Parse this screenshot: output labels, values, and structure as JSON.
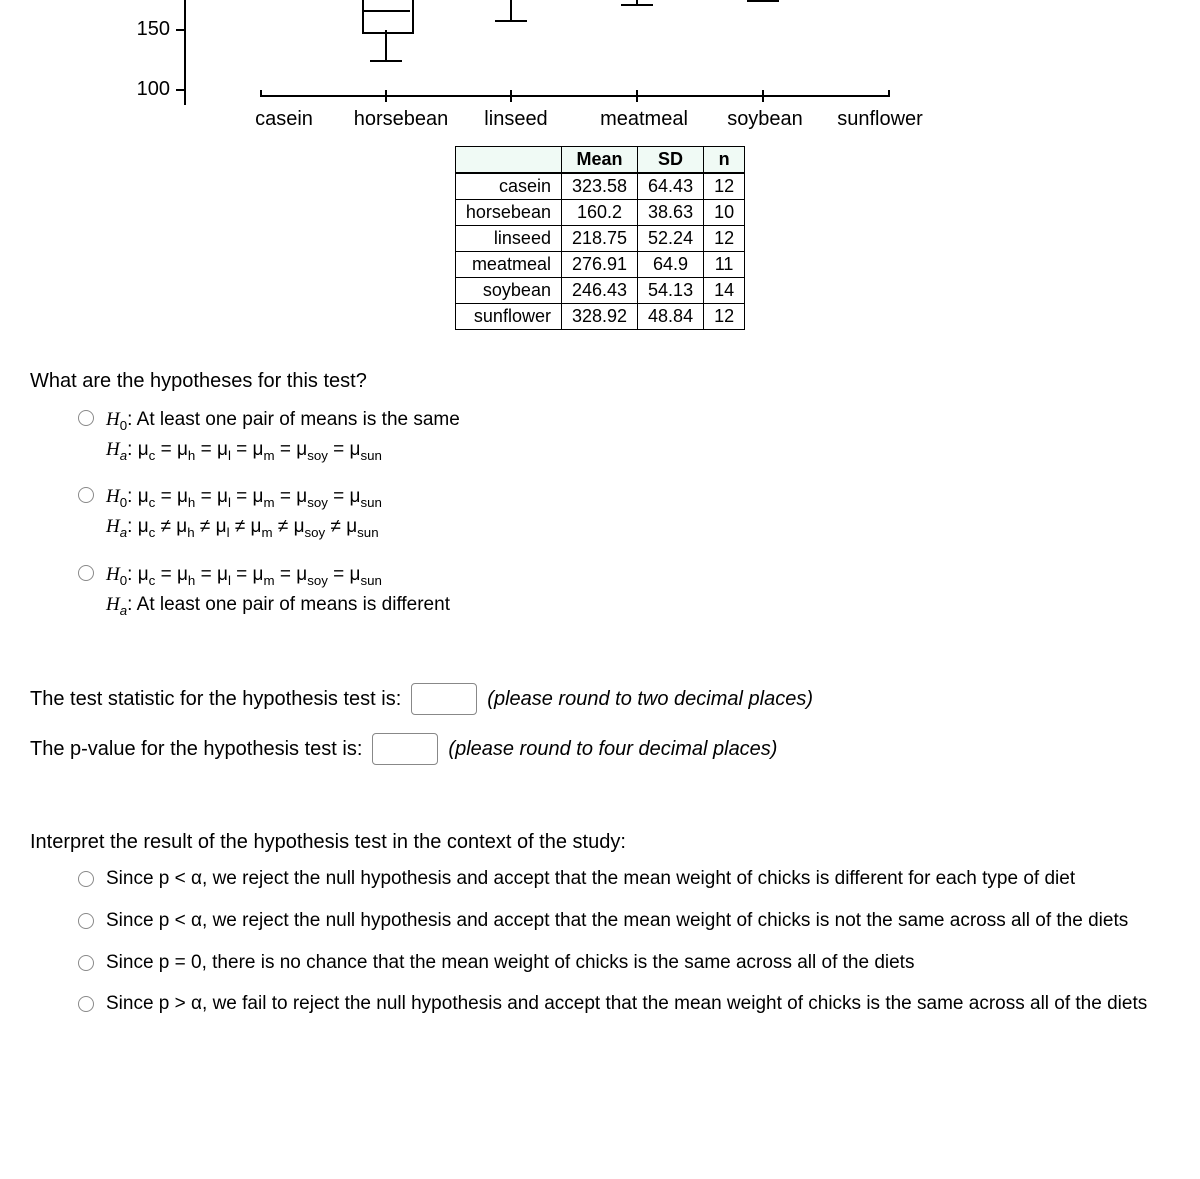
{
  "chart": {
    "type": "boxplot",
    "y_ticks": [
      100,
      150
    ],
    "y_tick_fontsize": 20,
    "x_categories": [
      "casein",
      "horsebean",
      "linseed",
      "meatmeal",
      "soybean",
      "sunflower"
    ],
    "x_fontsize": 20,
    "axis_color": "#000000",
    "background_color": "#ffffff"
  },
  "table": {
    "columns": [
      "",
      "Mean",
      "SD",
      "n"
    ],
    "rows": [
      [
        "casein",
        "323.58",
        "64.43",
        "12"
      ],
      [
        "horsebean",
        "160.2",
        "38.63",
        "10"
      ],
      [
        "linseed",
        "218.75",
        "52.24",
        "12"
      ],
      [
        "meatmeal",
        "276.91",
        "64.9",
        "11"
      ],
      [
        "soybean",
        "246.43",
        "54.13",
        "14"
      ],
      [
        "sunflower",
        "328.92",
        "48.84",
        "12"
      ]
    ],
    "header_bg": "#f0faf5",
    "border_color": "#000000"
  },
  "q1": {
    "prompt": "What are the hypotheses for this test?",
    "opt1": {
      "h0": "H₀: At least one pair of means is the same",
      "ha": "Hₐ: μc = μh = μl = μm = μsoy = μsun"
    },
    "opt2": {
      "h0": "H₀: μc = μh = μl = μm = μsoy = μsun",
      "ha": "Hₐ: μc ≠ μh ≠ μl ≠ μm ≠ μsoy ≠ μsun"
    },
    "opt3": {
      "h0": "H₀: μc = μh = μl = μm = μsoy = μsun",
      "ha": "Hₐ: At least one pair of means is different"
    }
  },
  "q2": {
    "label": "The test statistic for the hypothesis test is:",
    "hint": "(please round to two decimal places)"
  },
  "q3": {
    "label": "The p-value for the hypothesis test is:",
    "hint": "(please round to four decimal places)"
  },
  "q4": {
    "prompt": "Interpret the result of the hypothesis test in the context of the study:",
    "opt1": "Since p < α, we reject the null hypothesis and accept that the mean weight of chicks is different for each type of diet",
    "opt2": "Since p < α, we reject the null hypothesis and accept that the mean weight of chicks is not the same across all of the diets",
    "opt3": "Since p = 0, there is no chance that the mean weight of chicks is the same across all of the diets",
    "opt4": "Since p > α, we fail to reject the null hypothesis and accept that the mean weight of chicks is the same across all of the diets"
  }
}
